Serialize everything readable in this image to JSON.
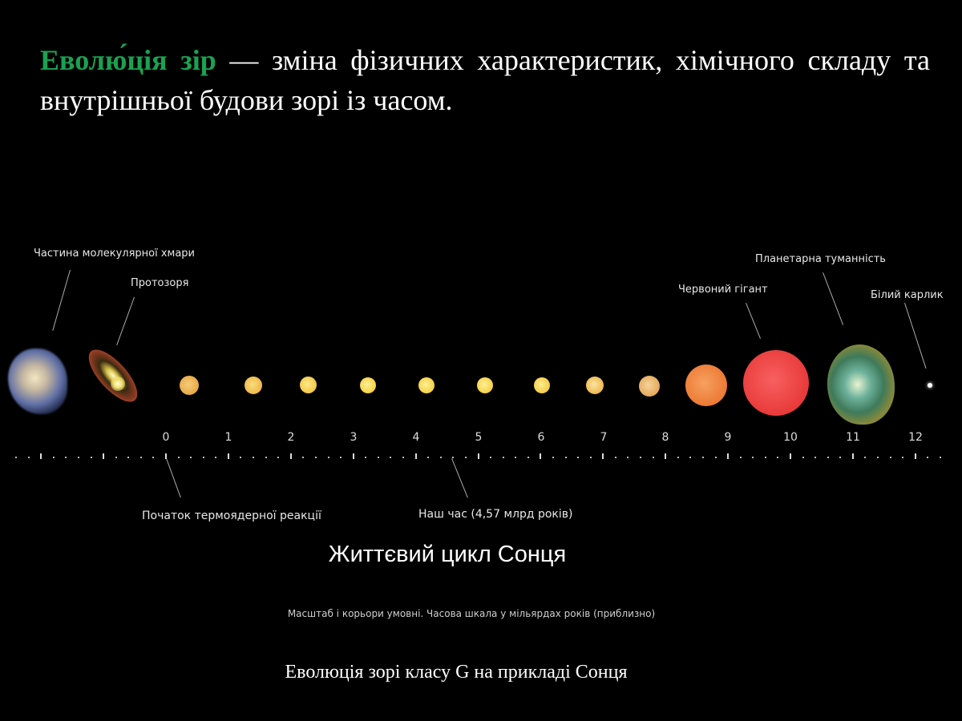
{
  "headline": {
    "term": "Еволю́ція зір",
    "definition": " — зміна фізичних характеристик, хімічного складу та внутрішньої будови зорі із часом.",
    "term_color": "#1aa152"
  },
  "diagram": {
    "title": "Життєвий цикл Сонця",
    "note": "Масштаб і корьори умовні. Часова шкала у мільярдах років (приблизно)",
    "caption": "Еволюція зорі класу G на прикладі Сонця",
    "stage_labels": {
      "molecular_cloud": "Частина молекулярної хмари",
      "protostar": "Протозоря",
      "red_giant": "Червоний гігант",
      "planetary_nebula": "Планетарна туманність",
      "white_dwarf": "Білий карлик"
    },
    "axis_labels": {
      "fusion_start": "Початок термоядерної реакції",
      "now": "Наш час (4,57 млрд років)"
    },
    "axis": {
      "ticks": [
        "0",
        "1",
        "2",
        "3",
        "4",
        "5",
        "6",
        "7",
        "8",
        "9",
        "10",
        "11",
        "12"
      ],
      "unit": "мільярди років"
    }
  }
}
